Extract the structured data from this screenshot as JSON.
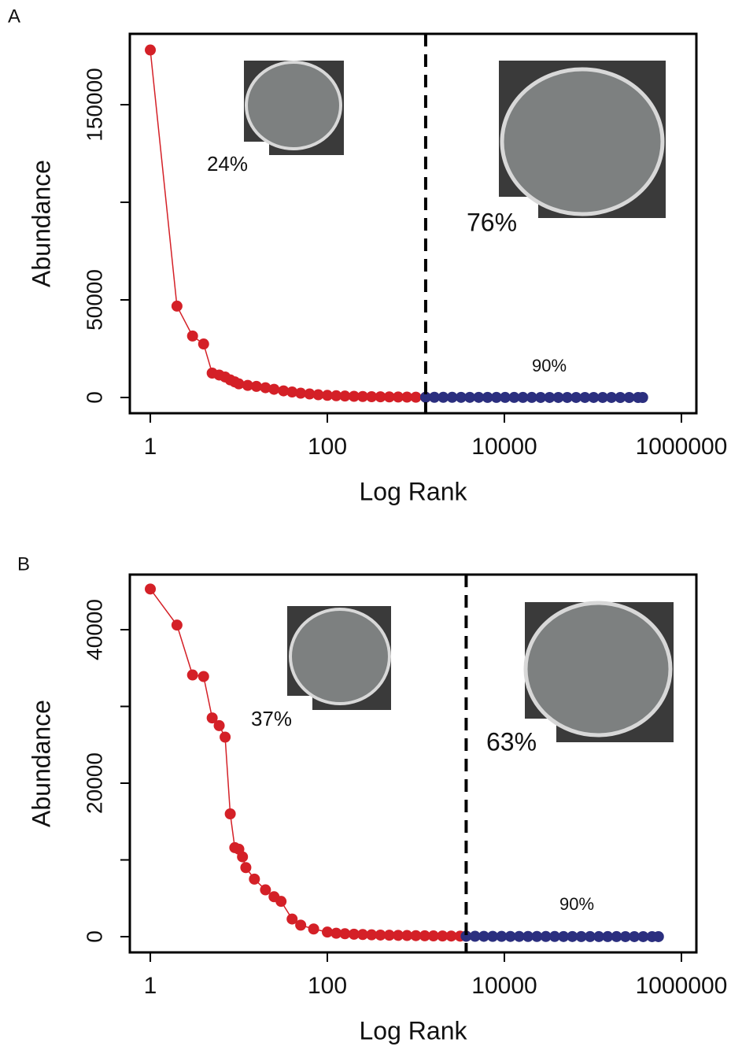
{
  "chart_data": [
    {
      "type": "scatter",
      "label": "A",
      "xlabel": "Log Rank",
      "ylabel": "Abundance",
      "xlog": true,
      "xlim": [
        0.587,
        1476000
      ],
      "ylim": [
        -8065,
        186290
      ],
      "xticks": [
        1,
        100,
        10000,
        1000000
      ],
      "yticks": [
        0,
        50000,
        {
          "value": 100000,
          "label": null
        },
        150000
      ],
      "vline": 1290,
      "annotations": [
        "24%",
        "76%",
        "90%"
      ],
      "series": [
        {
          "color": "#d42027",
          "x": [
            1,
            2,
            3,
            4,
            5,
            6,
            7,
            8,
            9,
            10,
            12.6,
            15.8,
            20,
            25,
            32,
            40,
            50,
            63,
            79,
            100,
            126,
            158,
            200,
            251,
            316,
            398,
            501,
            631,
            794,
            1000,
            1290
          ],
          "values": [
            178000,
            46800,
            31500,
            27400,
            12500,
            11500,
            10500,
            9000,
            8000,
            7000,
            6200,
            5700,
            5000,
            4200,
            3400,
            2800,
            2200,
            1800,
            1400,
            1100,
            900,
            750,
            600,
            500,
            400,
            350,
            300,
            250,
            200,
            150,
            120
          ]
        },
        {
          "color": "#2b2f7f",
          "x": [
            1290,
            1620,
            2040,
            2570,
            3240,
            4070,
            5130,
            6460,
            8130,
            10200,
            12900,
            16200,
            20400,
            25700,
            32400,
            40700,
            51300,
            64600,
            81300,
            102000,
            129000,
            162000,
            204000,
            257000,
            324000,
            365000
          ],
          "values": [
            110,
            100,
            90,
            80,
            70,
            60,
            55,
            50,
            45,
            40,
            35,
            30,
            25,
            22,
            20,
            18,
            15,
            12,
            10,
            8,
            6,
            5,
            4,
            3,
            2,
            1
          ]
        }
      ]
    },
    {
      "type": "scatter",
      "label": "B",
      "xlabel": "Log Rank",
      "ylabel": "Abundance",
      "xlog": true,
      "xlim": [
        0.587,
        1476000
      ],
      "ylim": [
        -2051,
        47180
      ],
      "xticks": [
        1,
        100,
        10000,
        1000000
      ],
      "yticks": [
        0,
        {
          "value": 10000,
          "label": null
        },
        20000,
        {
          "value": 30000,
          "label": null
        },
        40000
      ],
      "vline": 3700,
      "annotations": [
        "37%",
        "63%",
        "90%"
      ],
      "series": [
        {
          "color": "#d42027",
          "x": [
            1,
            2,
            3,
            4,
            5,
            6,
            7,
            8,
            9,
            10,
            11,
            12,
            15,
            20,
            25,
            30,
            40,
            50,
            70,
            100,
            126,
            158,
            200,
            251,
            316,
            398,
            501,
            631,
            794,
            1000,
            1260,
            1580,
            2000,
            2510,
            3160,
            3700
          ],
          "values": [
            45300,
            40600,
            34100,
            33900,
            28500,
            27500,
            26000,
            16000,
            11600,
            11400,
            10400,
            9000,
            7500,
            6100,
            5200,
            4600,
            2300,
            1500,
            1000,
            600,
            450,
            380,
            320,
            280,
            240,
            210,
            190,
            170,
            150,
            130,
            115,
            100,
            90,
            80,
            70,
            60
          ]
        },
        {
          "color": "#2b2f7f",
          "x": [
            3700,
            4660,
            5860,
            7380,
            9290,
            11700,
            14700,
            18500,
            23300,
            29400,
            37000,
            46600,
            58600,
            73800,
            92900,
            117000,
            147000,
            185000,
            233000,
            294000,
            370000,
            466000,
            550000
          ],
          "values": [
            55,
            50,
            45,
            40,
            35,
            32,
            30,
            27,
            25,
            22,
            20,
            18,
            16,
            14,
            12,
            10,
            9,
            8,
            6,
            5,
            4,
            3,
            2
          ]
        }
      ]
    }
  ]
}
